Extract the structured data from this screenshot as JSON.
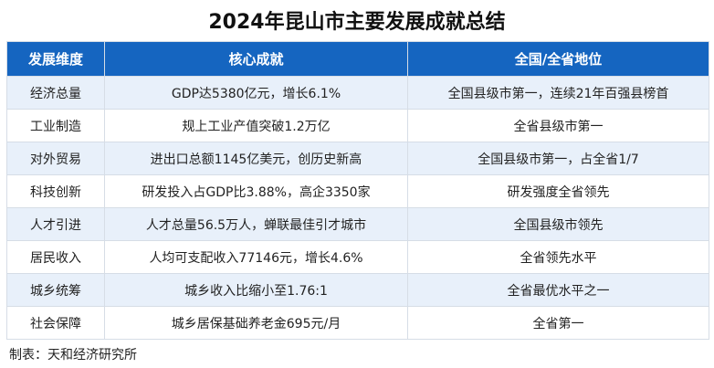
{
  "title": "2024年昆山市主要发展成就总结",
  "table": {
    "headers": [
      "发展维度",
      "核心成就",
      "全国/全省地位"
    ],
    "rows": [
      [
        "经济总量",
        "GDP达5380亿元，增长6.1%",
        "全国县级市第一，连续21年百强县榜首"
      ],
      [
        "工业制造",
        "规上工业产值突破1.2万亿",
        "全省县级市第一"
      ],
      [
        "对外贸易",
        "进出口总额1145亿美元，创历史新高",
        "全国县级市第一，占全省1/7"
      ],
      [
        "科技创新",
        "研发投入占GDP比3.88%，高企3350家",
        "研发强度全省领先"
      ],
      [
        "人才引进",
        "人才总量56.5万人，蝉联最佳引才城市",
        "全国县级市领先"
      ],
      [
        "居民收入",
        "人均可支配收入77146元，增长4.6%",
        "全省领先水平"
      ],
      [
        "城乡统筹",
        "城乡收入比缩小至1.76:1",
        "全省最优水平之一"
      ],
      [
        "社会保障",
        "城乡居保基础养老金695元/月",
        "全省第一"
      ]
    ]
  },
  "source": "制表：天和经济研究所",
  "colors": {
    "header_bg": "#1565c0",
    "odd_row_bg": "#e8f0fa"
  }
}
